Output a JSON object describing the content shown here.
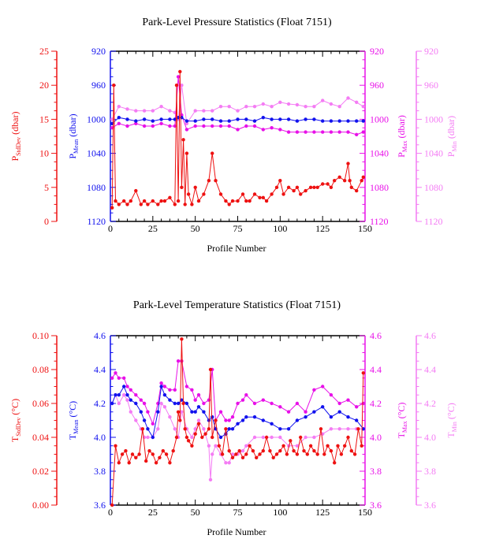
{
  "colors": {
    "stddev": "#ee1111",
    "mean": "#1111ee",
    "max": "#e810e8",
    "min": "#f47cf4",
    "axis": "#000000"
  },
  "chart_data": [
    {
      "type": "line",
      "title": "Park-Level Pressure Statistics (Float 7151)",
      "xlabel": "Profile Number",
      "xlim": [
        0,
        150
      ],
      "xticks": [
        "0",
        "25",
        "50",
        "75",
        "100",
        "125",
        "150"
      ],
      "axes": [
        {
          "id": "stddev",
          "side": "left-outer",
          "label": "P",
          "label_sub": "StdDev",
          "label_unit": " (dbar)",
          "lim": [
            0,
            25
          ],
          "inverted": false,
          "ticks": [
            "0",
            "5",
            "10",
            "15",
            "20",
            "25"
          ]
        },
        {
          "id": "mean",
          "side": "left-inner",
          "label": "P",
          "label_sub": "Mean",
          "label_unit": " (dbar)",
          "lim": [
            920,
            1120
          ],
          "inverted": true,
          "ticks": [
            "920",
            "960",
            "1000",
            "1040",
            "1080",
            "1120"
          ]
        },
        {
          "id": "max",
          "side": "right-inner",
          "label": "P",
          "label_sub": "Max",
          "label_unit": " (dbar)",
          "lim": [
            920,
            1120
          ],
          "inverted": true,
          "ticks": [
            "920",
            "960",
            "1000",
            "1040",
            "1080",
            "1120"
          ]
        },
        {
          "id": "min",
          "side": "right-outer",
          "label": "P",
          "label_sub": "Min",
          "label_unit": " (dbar)",
          "lim": [
            920,
            1120
          ],
          "inverted": true,
          "ticks": [
            "920",
            "960",
            "1000",
            "1040",
            "1080",
            "1120"
          ]
        }
      ],
      "series": [
        {
          "axis": "min",
          "x": [
            1,
            5,
            10,
            15,
            20,
            25,
            30,
            35,
            38,
            40,
            42,
            45,
            50,
            55,
            60,
            65,
            70,
            75,
            80,
            85,
            90,
            95,
            100,
            105,
            110,
            115,
            120,
            125,
            130,
            135,
            140,
            145,
            149
          ],
          "y": [
            1000,
            985,
            988,
            990,
            990,
            990,
            985,
            990,
            992,
            1000,
            960,
            1005,
            990,
            990,
            990,
            985,
            985,
            990,
            985,
            985,
            982,
            985,
            980,
            982,
            983,
            985,
            985,
            978,
            982,
            985,
            975,
            980,
            985
          ]
        },
        {
          "axis": "max",
          "x": [
            1,
            5,
            10,
            15,
            20,
            25,
            30,
            35,
            38,
            40,
            42,
            45,
            50,
            55,
            60,
            65,
            70,
            75,
            80,
            85,
            90,
            95,
            100,
            105,
            110,
            115,
            120,
            125,
            130,
            135,
            140,
            145,
            149
          ],
          "y": [
            1010,
            1005,
            1008,
            1005,
            1008,
            1008,
            1005,
            1008,
            1008,
            950,
            995,
            1012,
            1008,
            1008,
            1008,
            1008,
            1008,
            1012,
            1008,
            1008,
            1012,
            1010,
            1012,
            1015,
            1015,
            1015,
            1015,
            1015,
            1015,
            1015,
            1015,
            1018,
            1015
          ]
        },
        {
          "axis": "mean",
          "x": [
            1,
            5,
            10,
            15,
            20,
            25,
            30,
            35,
            38,
            40,
            42,
            45,
            50,
            55,
            60,
            65,
            70,
            75,
            80,
            85,
            90,
            95,
            100,
            105,
            110,
            115,
            120,
            125,
            130,
            135,
            140,
            145,
            149
          ],
          "y": [
            1005,
            998,
            1000,
            1002,
            1000,
            1002,
            1000,
            1000,
            1000,
            998,
            998,
            1002,
            1002,
            1000,
            1000,
            1002,
            1002,
            1000,
            1000,
            1002,
            998,
            1000,
            1000,
            1000,
            1002,
            1000,
            1000,
            1002,
            1002,
            1002,
            1002,
            1002,
            1002
          ]
        },
        {
          "axis": "stddev",
          "x": [
            1,
            2,
            3,
            5,
            8,
            10,
            12,
            15,
            18,
            20,
            22,
            25,
            28,
            30,
            32,
            35,
            38,
            39,
            40,
            41,
            42,
            43,
            44,
            45,
            46,
            48,
            50,
            52,
            55,
            58,
            60,
            62,
            65,
            68,
            70,
            72,
            75,
            78,
            80,
            82,
            85,
            88,
            90,
            92,
            95,
            98,
            100,
            102,
            105,
            108,
            110,
            112,
            115,
            118,
            120,
            122,
            125,
            128,
            130,
            132,
            135,
            138,
            140,
            141,
            142,
            145,
            148,
            149
          ],
          "y": [
            2,
            20,
            3,
            2.5,
            3,
            2.5,
            3,
            4.5,
            2.5,
            3,
            2.5,
            3,
            2.5,
            3,
            3,
            3.5,
            2.5,
            20,
            3,
            22,
            5,
            12,
            2.5,
            10,
            4,
            2.5,
            5,
            3,
            4,
            6,
            10,
            6,
            4,
            3,
            2.5,
            3,
            3,
            4,
            3,
            3,
            4,
            3.5,
            3.5,
            3,
            4,
            5,
            6,
            4,
            5,
            4.5,
            5,
            4,
            4.5,
            5,
            5,
            5,
            5.5,
            5.5,
            5,
            6,
            6.5,
            6,
            8.5,
            6,
            5,
            4.5,
            6,
            6.5
          ]
        }
      ]
    },
    {
      "type": "line",
      "title": "Park-Level Temperature Statistics (Float 7151)",
      "xlabel": "Profile Number",
      "xlim": [
        0,
        150
      ],
      "xticks": [
        "0",
        "25",
        "50",
        "75",
        "100",
        "125",
        "150"
      ],
      "axes": [
        {
          "id": "stddev",
          "side": "left-outer",
          "label": "T",
          "label_sub": "StdDev",
          "label_unit": " (°C)",
          "lim": [
            0,
            0.1
          ],
          "inverted": false,
          "ticks": [
            "0.00",
            "0.02",
            "0.04",
            "0.06",
            "0.08",
            "0.10"
          ]
        },
        {
          "id": "mean",
          "side": "left-inner",
          "label": "T",
          "label_sub": "Mean",
          "label_unit": " (°C)",
          "lim": [
            3.6,
            4.6
          ],
          "inverted": false,
          "ticks": [
            "3.6",
            "3.8",
            "4.0",
            "4.2",
            "4.4",
            "4.6"
          ]
        },
        {
          "id": "max",
          "side": "right-inner",
          "label": "T",
          "label_sub": "Max",
          "label_unit": " (°C)",
          "lim": [
            3.6,
            4.6
          ],
          "inverted": false,
          "ticks": [
            "3.6",
            "3.8",
            "4.0",
            "4.2",
            "4.4",
            "4.6"
          ]
        },
        {
          "id": "min",
          "side": "right-outer",
          "label": "T",
          "label_sub": "Min",
          "label_unit": " (°C)",
          "lim": [
            3.6,
            4.6
          ],
          "inverted": false,
          "ticks": [
            "3.6",
            "3.8",
            "4.0",
            "4.2",
            "4.4",
            "4.6"
          ]
        }
      ],
      "series": [
        {
          "axis": "min",
          "x": [
            1,
            3,
            5,
            8,
            10,
            12,
            15,
            18,
            20,
            22,
            25,
            28,
            30,
            32,
            35,
            38,
            40,
            42,
            45,
            48,
            50,
            52,
            55,
            58,
            59,
            60,
            62,
            65,
            68,
            70,
            72,
            75,
            78,
            80,
            85,
            90,
            95,
            100,
            105,
            110,
            115,
            120,
            125,
            130,
            135,
            140,
            145,
            149
          ],
          "y": [
            4.2,
            4.25,
            4.2,
            4.25,
            4.22,
            4.15,
            4.1,
            4.05,
            4.0,
            4.0,
            4.0,
            4.05,
            4.2,
            4.18,
            4.12,
            4.05,
            4.0,
            4.15,
            4.05,
            4.0,
            4.05,
            4.1,
            4.05,
            3.95,
            3.75,
            3.9,
            3.95,
            3.9,
            3.85,
            3.85,
            3.9,
            3.9,
            3.92,
            3.95,
            4.0,
            4.0,
            4.0,
            4.0,
            3.95,
            3.95,
            4.0,
            4.0,
            4.02,
            4.05,
            4.05,
            4.05,
            4.05,
            4.05
          ]
        },
        {
          "axis": "max",
          "x": [
            1,
            3,
            5,
            8,
            10,
            12,
            15,
            18,
            20,
            22,
            25,
            28,
            30,
            32,
            35,
            38,
            40,
            42,
            45,
            48,
            50,
            52,
            55,
            58,
            60,
            62,
            65,
            68,
            70,
            72,
            75,
            78,
            80,
            85,
            90,
            95,
            100,
            105,
            110,
            115,
            120,
            125,
            130,
            135,
            140,
            145,
            149
          ],
          "y": [
            4.35,
            4.38,
            4.35,
            4.35,
            4.3,
            4.28,
            4.25,
            4.22,
            4.2,
            4.15,
            4.08,
            4.2,
            4.32,
            4.3,
            4.28,
            4.28,
            4.45,
            4.45,
            4.3,
            4.28,
            4.22,
            4.25,
            4.2,
            4.22,
            4.4,
            4.1,
            4.15,
            4.1,
            4.1,
            4.12,
            4.2,
            4.22,
            4.25,
            4.2,
            4.22,
            4.2,
            4.18,
            4.15,
            4.2,
            4.15,
            4.28,
            4.3,
            4.25,
            4.2,
            4.22,
            4.18,
            4.2
          ]
        },
        {
          "axis": "mean",
          "x": [
            1,
            3,
            5,
            8,
            10,
            12,
            15,
            18,
            20,
            22,
            25,
            28,
            30,
            32,
            35,
            38,
            40,
            42,
            45,
            48,
            50,
            52,
            55,
            58,
            60,
            62,
            65,
            68,
            70,
            72,
            75,
            78,
            80,
            85,
            90,
            95,
            100,
            105,
            110,
            115,
            120,
            125,
            130,
            135,
            140,
            145,
            149
          ],
          "y": [
            4.2,
            4.25,
            4.25,
            4.3,
            4.25,
            4.22,
            4.2,
            4.15,
            4.1,
            4.05,
            4.0,
            4.15,
            4.3,
            4.25,
            4.22,
            4.2,
            4.2,
            4.22,
            4.2,
            4.15,
            4.15,
            4.18,
            4.15,
            4.1,
            4.12,
            4.05,
            4.0,
            4.02,
            4.05,
            4.05,
            4.08,
            4.1,
            4.12,
            4.12,
            4.1,
            4.08,
            4.05,
            4.05,
            4.1,
            4.12,
            4.15,
            4.18,
            4.12,
            4.15,
            4.12,
            4.1,
            4.05
          ]
        },
        {
          "axis": "stddev",
          "x": [
            1,
            3,
            5,
            7,
            9,
            11,
            13,
            15,
            17,
            19,
            21,
            23,
            25,
            27,
            29,
            31,
            33,
            35,
            37,
            39,
            40,
            41,
            42,
            43,
            44,
            45,
            46,
            48,
            50,
            52,
            54,
            56,
            58,
            59,
            60,
            62,
            64,
            66,
            68,
            70,
            72,
            74,
            76,
            78,
            80,
            82,
            84,
            86,
            88,
            90,
            92,
            94,
            96,
            98,
            100,
            102,
            104,
            106,
            108,
            110,
            112,
            114,
            116,
            118,
            120,
            122,
            124,
            126,
            128,
            130,
            132,
            134,
            136,
            138,
            140,
            142,
            144,
            146,
            148,
            149
          ],
          "y": [
            0.0,
            0.035,
            0.025,
            0.03,
            0.032,
            0.025,
            0.03,
            0.028,
            0.03,
            0.045,
            0.026,
            0.032,
            0.03,
            0.025,
            0.028,
            0.032,
            0.03,
            0.025,
            0.032,
            0.04,
            0.055,
            0.05,
            0.098,
            0.06,
            0.045,
            0.04,
            0.038,
            0.035,
            0.042,
            0.048,
            0.04,
            0.042,
            0.045,
            0.08,
            0.04,
            0.05,
            0.035,
            0.03,
            0.045,
            0.032,
            0.028,
            0.03,
            0.032,
            0.028,
            0.03,
            0.035,
            0.032,
            0.028,
            0.03,
            0.032,
            0.04,
            0.032,
            0.028,
            0.03,
            0.032,
            0.035,
            0.03,
            0.038,
            0.032,
            0.03,
            0.04,
            0.032,
            0.03,
            0.035,
            0.032,
            0.03,
            0.045,
            0.03,
            0.035,
            0.032,
            0.025,
            0.035,
            0.03,
            0.035,
            0.04,
            0.032,
            0.03,
            0.045,
            0.035,
            0.078
          ]
        }
      ]
    }
  ]
}
